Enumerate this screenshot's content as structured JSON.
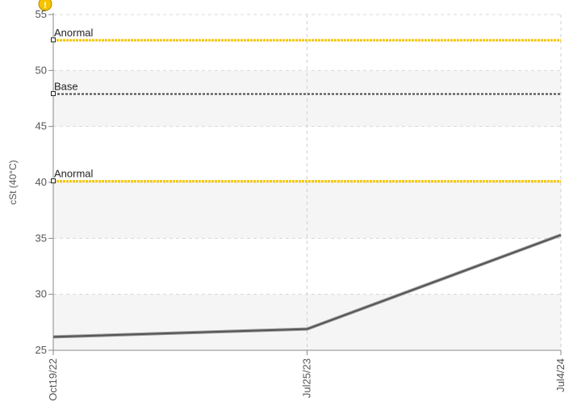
{
  "chart_data": {
    "type": "line",
    "ylabel": "cSt (40°C)",
    "xlabel": "",
    "title": "",
    "x": [
      "Oct19/22",
      "Jul25/23",
      "Jul4/24"
    ],
    "series": [
      {
        "values": [
          26.2,
          26.9,
          35.3
        ],
        "color": "#555555"
      }
    ],
    "reference_lines": [
      {
        "label": "Anormal",
        "value": 52.7,
        "color": "#f5c400",
        "style": "dotted"
      },
      {
        "label": "Base",
        "value": 47.9,
        "color": "#444444",
        "style": "dotted"
      },
      {
        "label": "Anormal",
        "value": 40.1,
        "color": "#f5c400",
        "style": "dotted"
      }
    ],
    "ylim": [
      25,
      55
    ],
    "yticks": [
      25,
      30,
      35,
      40,
      45,
      50,
      55
    ],
    "grid": true,
    "band_colors": [
      "#f5f5f5",
      "#ffffff"
    ]
  },
  "warning_icon_color": "#f5c400"
}
